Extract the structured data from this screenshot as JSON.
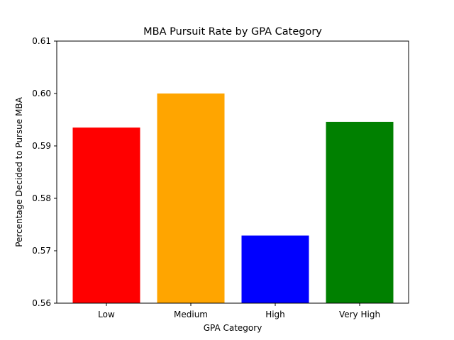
{
  "chart_data": {
    "type": "bar",
    "title": "MBA Pursuit Rate by GPA Category",
    "xlabel": "GPA Category",
    "ylabel": "Percentage Decided to Pursue MBA",
    "categories": [
      "Low",
      "Medium",
      "High",
      "Very High"
    ],
    "values": [
      0.5935,
      0.6,
      0.5729,
      0.5946
    ],
    "colors": [
      "#ff0000",
      "#ffa500",
      "#0000ff",
      "#008000"
    ],
    "ylim": [
      0.56,
      0.61
    ],
    "yticks": [
      "0.56",
      "0.57",
      "0.58",
      "0.59",
      "0.60",
      "0.61"
    ],
    "grid": false,
    "legend": "none"
  }
}
